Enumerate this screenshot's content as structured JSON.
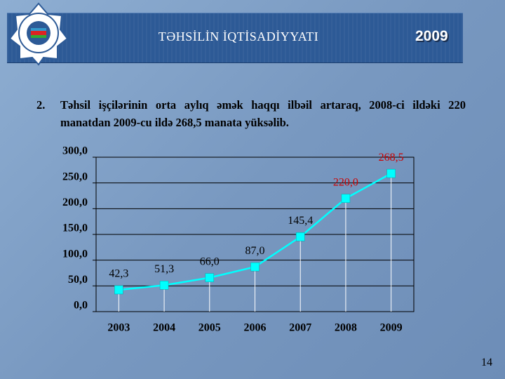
{
  "header": {
    "title": "TƏHSİLİN İQTİSADİYYATI",
    "year": "2009"
  },
  "item": {
    "number": "2.",
    "text": "Təhsil işçilərinin orta aylıq əmək haqqı ilbəil artaraq, 2008-ci ildəki 220 manatdan 2009-cu ildə 268,5 manata yüksəlib."
  },
  "chart_data": {
    "type": "line",
    "categories": [
      "2003",
      "2004",
      "2005",
      "2006",
      "2007",
      "2008",
      "2009"
    ],
    "values": [
      42.3,
      51.3,
      66.0,
      87.0,
      145.4,
      220.0,
      268.5
    ],
    "value_labels": [
      "42,3",
      "51,3",
      "66,0",
      "87,0",
      "145,4",
      "220,0",
      "268,5"
    ],
    "value_label_colors": [
      "#000000",
      "#000000",
      "#000000",
      "#000000",
      "#000000",
      "#cc0000",
      "#cc0000"
    ],
    "color": "#00ffff",
    "ylim": [
      0,
      300
    ],
    "yticks": [
      {
        "value": 0,
        "label": "0,0"
      },
      {
        "value": 50,
        "label": "50,0"
      },
      {
        "value": 100,
        "label": "100,0"
      },
      {
        "value": 150,
        "label": "150,0"
      },
      {
        "value": 200,
        "label": "200,0"
      },
      {
        "value": 250,
        "label": "250,0"
      },
      {
        "value": 300,
        "label": "300,0"
      }
    ],
    "grid": true
  },
  "page_number": "14"
}
